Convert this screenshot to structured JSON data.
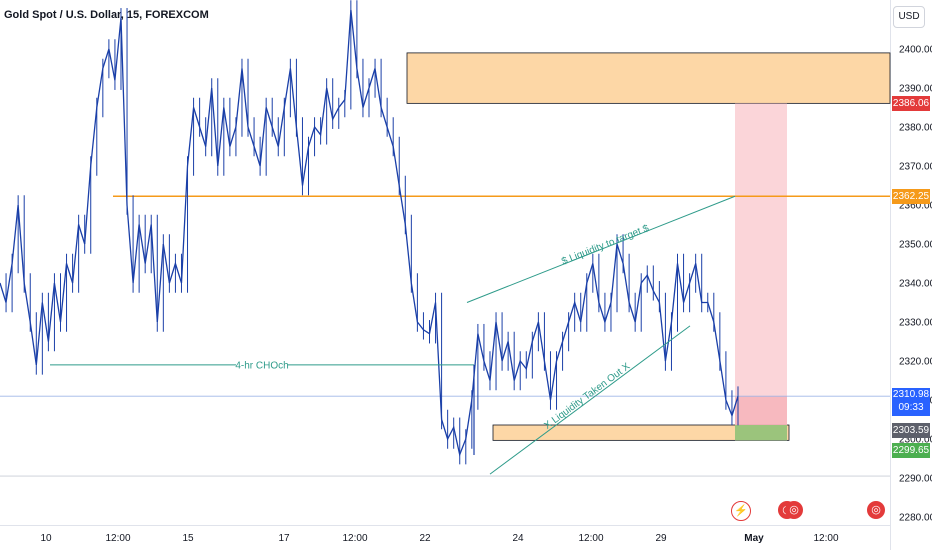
{
  "header": {
    "title": "Gold Spot / U.S. Dollar, 15, FOREXCOM",
    "currency_button": "USD"
  },
  "colors": {
    "candles": "#1a3fa8",
    "zone_fill": "#fdd7a6",
    "resistance_line": "#f59a1a",
    "annotation_text": "#2e9b8a",
    "stop_fill": "#f9c7cc",
    "target_fill": "#9bc47c",
    "badge_red": "#e33a3a",
    "badge_orange": "#f59a1a",
    "badge_blue": "#2962ff",
    "badge_grey": "#5d606b",
    "badge_green": "#4caf50"
  },
  "chart_data": {
    "type": "line",
    "xlabel": "",
    "ylabel": "",
    "ylim": [
      2275,
      2407
    ],
    "y_ticks": [
      2280,
      2290,
      2300,
      2310,
      2320,
      2330,
      2340,
      2350,
      2360,
      2370,
      2380,
      2390,
      2400
    ],
    "x_tick_labels": [
      "10",
      "12:00",
      "15",
      "17",
      "12:00",
      "22",
      "24",
      "12:00",
      "29",
      "May",
      "12:00"
    ],
    "grid": false,
    "series": [
      {
        "values": [
          2340,
          2335,
          2345,
          2360,
          2340,
          2330,
          2319,
          2335,
          2325,
          2340,
          2330,
          2345,
          2340,
          2355,
          2350,
          2370,
          2385,
          2395,
          2400,
          2392,
          2408,
          2360,
          2340,
          2355,
          2345,
          2355,
          2330,
          2350,
          2340,
          2345,
          2340,
          2370,
          2385,
          2380,
          2375,
          2390,
          2370,
          2385,
          2375,
          2380,
          2395,
          2380,
          2375,
          2370,
          2385,
          2380,
          2375,
          2385,
          2395,
          2380,
          2365,
          2375,
          2380,
          2378,
          2390,
          2382,
          2385,
          2387,
          2410,
          2395,
          2385,
          2390,
          2395,
          2385,
          2380,
          2375,
          2365,
          2355,
          2340,
          2330,
          2328,
          2327,
          2335,
          2305,
          2300,
          2303,
          2296,
          2300,
          2310,
          2327,
          2320,
          2315,
          2330,
          2320,
          2325,
          2315,
          2320,
          2318,
          2325,
          2330,
          2320,
          2310,
          2320,
          2325,
          2330,
          2335,
          2330,
          2340,
          2345,
          2335,
          2330,
          2335,
          2350,
          2345,
          2335,
          2330,
          2340,
          2342,
          2338,
          2335,
          2320,
          2330,
          2345,
          2335,
          2340,
          2345,
          2335,
          2335,
          2330,
          2320,
          2310,
          2306,
          2310.98
        ]
      }
    ],
    "annotations": [
      {
        "text": "4-hr CHOch",
        "y": 2319
      },
      {
        "text": "$ Liquidity to target $",
        "y_start": 2335,
        "y_end": 2362.25
      },
      {
        "text": "X Liquidity Taken Out X",
        "y_start": 2291,
        "y_end": 2329
      }
    ],
    "levels": [
      {
        "name": "supply_zone",
        "y_top": 2399,
        "y_bottom": 2386.06
      },
      {
        "name": "resistance",
        "y": 2362.25
      },
      {
        "name": "demand_zone",
        "y_top": 2303.59,
        "y_bottom": 2299.65
      }
    ],
    "position": {
      "entry": 2303.59,
      "stop": 2310.98,
      "target": 2386.06
    },
    "price_badges": [
      {
        "label": "2386.06",
        "value": 2386.06,
        "color": "#e33a3a"
      },
      {
        "label": "2362.25",
        "value": 2362.25,
        "color": "#f59a1a"
      },
      {
        "label": "2310.98",
        "value": 2310.98,
        "color": "#2962ff",
        "sub": "09:33"
      },
      {
        "label": "2303.59",
        "value": 2303.59,
        "color": "#5d606b"
      },
      {
        "label": "2299.65",
        "value": 2299.65,
        "color": "#4caf50"
      }
    ],
    "last_price": 2310.98,
    "last_price_line": 2290.5
  }
}
